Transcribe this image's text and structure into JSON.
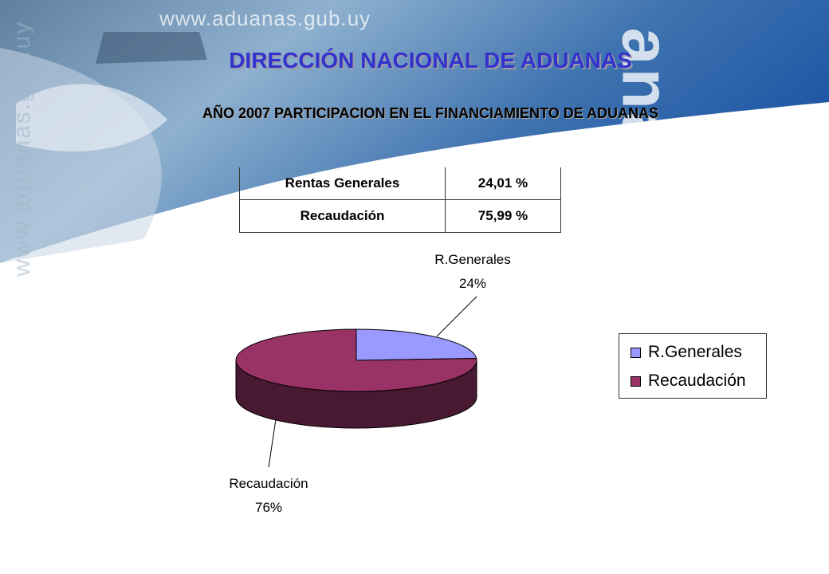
{
  "header": {
    "url": "www.aduanas.gub.uy",
    "vertical_url": "www.aduanas.gub.uy",
    "big_word": "anas",
    "title": "DIRECCIÓN NACIONAL DE ADUANAS",
    "subtitle": "AÑO 2007 PARTICIPACION EN EL FINANCIAMIENTO DE ADUANAS"
  },
  "table": {
    "rows": [
      {
        "label": "Rentas Generales",
        "value": "24,01 %"
      },
      {
        "label": "Recaudación",
        "value": "75,99 %"
      }
    ]
  },
  "chart_data": {
    "type": "pie",
    "title": "",
    "categories": [
      "R.Generales",
      "Recaudación"
    ],
    "values": [
      24,
      76
    ],
    "data_labels": [
      "24%",
      "76%"
    ],
    "colors": [
      "#9999ff",
      "#993366"
    ],
    "legend": {
      "position": "right",
      "entries": [
        "R.Generales",
        "Recaudación"
      ]
    }
  }
}
